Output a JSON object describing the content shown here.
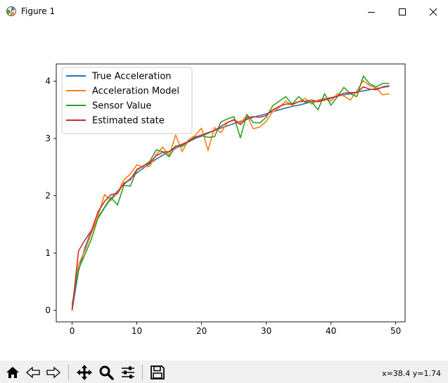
{
  "window": {
    "title": "Figure 1"
  },
  "toolbar": {
    "buttons": [
      "home-icon",
      "back-icon",
      "forward-icon",
      "pan-icon",
      "zoom-icon",
      "configure-subplots-icon",
      "save-icon"
    ],
    "coords": "x=38.4 y=1.74"
  },
  "chart_data": {
    "type": "line",
    "title": "",
    "xlabel": "",
    "ylabel": "",
    "xlim": [
      -2.45,
      51.45
    ],
    "ylim": [
      -0.2,
      4.3
    ],
    "xticks": [
      0,
      10,
      20,
      30,
      40,
      50
    ],
    "yticks": [
      0,
      1,
      2,
      3,
      4
    ],
    "x": [
      0,
      1,
      2,
      3,
      4,
      5,
      6,
      7,
      8,
      9,
      10,
      11,
      12,
      13,
      14,
      15,
      16,
      17,
      18,
      19,
      20,
      21,
      22,
      23,
      24,
      25,
      26,
      27,
      28,
      29,
      30,
      31,
      32,
      33,
      34,
      35,
      36,
      37,
      38,
      39,
      40,
      41,
      42,
      43,
      44,
      45,
      46,
      47,
      48,
      49
    ],
    "legend_position": "upper left",
    "series": [
      {
        "name": "True Acceleration",
        "color": "#1f77b4",
        "values": [
          0.0,
          0.69,
          1.1,
          1.39,
          1.61,
          1.79,
          1.95,
          2.08,
          2.2,
          2.3,
          2.4,
          2.48,
          2.56,
          2.64,
          2.71,
          2.77,
          2.83,
          2.89,
          2.94,
          3.0,
          3.04,
          3.09,
          3.14,
          3.18,
          3.22,
          3.26,
          3.3,
          3.33,
          3.37,
          3.4,
          3.43,
          3.47,
          3.5,
          3.53,
          3.56,
          3.58,
          3.61,
          3.64,
          3.66,
          3.69,
          3.71,
          3.74,
          3.76,
          3.78,
          3.81,
          3.83,
          3.85,
          3.87,
          3.89,
          3.91
        ]
      },
      {
        "name": "Acceleration Model",
        "color": "#ff7f0e",
        "values": [
          0.05,
          0.8,
          1.05,
          1.35,
          1.65,
          2.02,
          1.92,
          2.05,
          2.28,
          2.38,
          2.54,
          2.5,
          2.52,
          2.72,
          2.85,
          2.7,
          3.06,
          2.77,
          2.98,
          3.05,
          3.18,
          2.79,
          3.19,
          3.1,
          3.28,
          3.33,
          3.27,
          3.4,
          3.17,
          3.2,
          3.3,
          3.47,
          3.54,
          3.65,
          3.58,
          3.64,
          3.7,
          3.6,
          3.67,
          3.7,
          3.65,
          3.78,
          3.74,
          3.67,
          3.83,
          4.01,
          3.92,
          3.88,
          3.76,
          3.78
        ]
      },
      {
        "name": "Sensor Value",
        "color": "#2ca02c",
        "values": [
          0.1,
          0.72,
          0.98,
          1.25,
          1.62,
          1.8,
          1.97,
          1.84,
          2.18,
          2.17,
          2.45,
          2.52,
          2.6,
          2.8,
          2.77,
          2.68,
          2.87,
          2.86,
          2.95,
          3.03,
          3.05,
          3.02,
          3.03,
          3.29,
          3.34,
          3.38,
          3.01,
          3.42,
          3.28,
          3.27,
          3.37,
          3.57,
          3.65,
          3.73,
          3.6,
          3.73,
          3.63,
          3.64,
          3.5,
          3.78,
          3.58,
          3.73,
          3.89,
          3.78,
          3.73,
          4.09,
          3.95,
          3.9,
          3.96,
          3.96
        ]
      },
      {
        "name": "Estimated state",
        "color": "#d62728",
        "values": [
          0.0,
          1.04,
          1.23,
          1.4,
          1.72,
          1.9,
          2.02,
          2.04,
          2.22,
          2.28,
          2.46,
          2.52,
          2.58,
          2.7,
          2.76,
          2.77,
          2.86,
          2.9,
          2.95,
          3.02,
          3.06,
          3.1,
          3.14,
          3.21,
          3.28,
          3.32,
          3.24,
          3.36,
          3.38,
          3.37,
          3.4,
          3.5,
          3.56,
          3.6,
          3.6,
          3.64,
          3.65,
          3.67,
          3.64,
          3.67,
          3.7,
          3.74,
          3.79,
          3.8,
          3.8,
          3.9,
          3.86,
          3.85,
          3.9,
          3.92
        ]
      }
    ]
  }
}
